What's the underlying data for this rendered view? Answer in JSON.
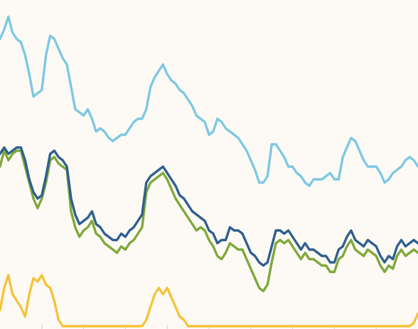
{
  "chart_data": {
    "type": "line",
    "title": "",
    "xlabel": "",
    "ylabel": "",
    "xlim": [
      0,
      100
    ],
    "ylim": [
      0,
      100
    ],
    "grid": false,
    "legend": "none",
    "x": [
      0,
      1,
      2,
      3,
      4,
      5,
      6,
      7,
      8,
      9,
      10,
      11,
      12,
      13,
      14,
      15,
      16,
      17,
      18,
      19,
      20,
      21,
      22,
      23,
      24,
      25,
      26,
      27,
      28,
      29,
      30,
      31,
      32,
      33,
      34,
      35,
      36,
      37,
      38,
      39,
      40,
      41,
      42,
      43,
      44,
      45,
      46,
      47,
      48,
      49,
      50,
      51,
      52,
      53,
      54,
      55,
      56,
      57,
      58,
      59,
      60,
      61,
      62,
      63,
      64,
      65,
      66,
      67,
      68,
      69,
      70,
      71,
      72,
      73,
      74,
      75,
      76,
      77,
      78,
      79,
      80,
      81,
      82,
      83,
      84,
      85,
      86,
      87,
      88,
      89,
      90,
      91,
      92,
      93,
      94,
      95,
      96,
      97,
      98,
      99,
      100
    ],
    "series": [
      {
        "color": "#7ec8e3",
        "values": [
          90,
          93,
          97,
          92,
          90,
          89,
          85,
          79,
          72,
          73,
          74,
          85,
          91,
          90,
          87,
          84,
          82,
          75,
          68,
          67,
          66,
          68,
          65,
          61,
          62,
          61,
          59,
          58,
          59,
          60,
          60,
          62,
          64,
          65,
          65,
          68,
          75,
          78,
          80,
          82,
          79,
          77,
          76,
          74,
          73,
          71,
          69,
          66,
          65,
          64,
          60,
          61,
          65,
          64,
          62,
          61,
          60,
          59,
          57,
          55,
          52,
          49,
          45,
          45,
          47,
          57,
          57,
          55,
          53,
          50,
          50,
          48,
          47,
          45,
          44,
          46,
          46,
          46,
          47,
          48,
          46,
          46,
          53,
          56,
          59,
          58,
          55,
          52,
          50,
          50,
          50,
          48,
          45,
          46,
          48,
          49,
          50,
          52,
          53,
          52,
          50
        ]
      },
      {
        "color": "#2f5f8f",
        "values": [
          54,
          56,
          54,
          55,
          56,
          56,
          52,
          46,
          42,
          40,
          41,
          47,
          54,
          55,
          53,
          52,
          50,
          40,
          35,
          32,
          33,
          34,
          36,
          32,
          31,
          29,
          28,
          27,
          27,
          29,
          28,
          30,
          31,
          33,
          35,
          45,
          47,
          48,
          49,
          50,
          48,
          46,
          44,
          41,
          40,
          38,
          36,
          35,
          34,
          33,
          30,
          29,
          26,
          27,
          27,
          31,
          30,
          30,
          29,
          26,
          23,
          22,
          20,
          19,
          20,
          25,
          30,
          30,
          29,
          30,
          28,
          26,
          24,
          26,
          24,
          24,
          23,
          22,
          22,
          20,
          20,
          24,
          25,
          28,
          30,
          27,
          26,
          25,
          27,
          26,
          25,
          22,
          20,
          22,
          21,
          25,
          27,
          25,
          26,
          27,
          26
        ]
      },
      {
        "color": "#7fa83a",
        "values": [
          50,
          55,
          52,
          54,
          55,
          55,
          50,
          45,
          40,
          37,
          40,
          45,
          52,
          53,
          51,
          50,
          49,
          36,
          31,
          28,
          30,
          31,
          33,
          29,
          28,
          26,
          25,
          24,
          23,
          25,
          24,
          26,
          27,
          29,
          31,
          42,
          45,
          46,
          47,
          48,
          46,
          43,
          40,
          38,
          36,
          34,
          32,
          30,
          31,
          30,
          27,
          25,
          22,
          21,
          23,
          26,
          25,
          24,
          24,
          21,
          18,
          15,
          12,
          11,
          13,
          20,
          26,
          27,
          26,
          27,
          25,
          23,
          21,
          23,
          21,
          21,
          20,
          19,
          19,
          17,
          17,
          21,
          22,
          25,
          27,
          24,
          23,
          22,
          24,
          23,
          22,
          19,
          17,
          19,
          18,
          22,
          24,
          22,
          23,
          24,
          23
        ]
      },
      {
        "color": "#f5c33b",
        "values": [
          5,
          12,
          16,
          10,
          8,
          6,
          3,
          10,
          15,
          14,
          16,
          13,
          12,
          8,
          2,
          0,
          0,
          0,
          0,
          0,
          0,
          0,
          0,
          0,
          0,
          0,
          0,
          0,
          0,
          0,
          0,
          0,
          0,
          0,
          0,
          2,
          6,
          10,
          12,
          10,
          12,
          9,
          6,
          3,
          2,
          0,
          0,
          0,
          0,
          0,
          0,
          0,
          0,
          0,
          0,
          0,
          0,
          0,
          0,
          0,
          0,
          0,
          0,
          0,
          0,
          0,
          0,
          0,
          0,
          0,
          0,
          0,
          0,
          0,
          0,
          0,
          0,
          0,
          0,
          0,
          0,
          0,
          0,
          0,
          0,
          0,
          0,
          0,
          0,
          0,
          0,
          0,
          0,
          0,
          0,
          0,
          0,
          0,
          0,
          1,
          4
        ]
      }
    ]
  }
}
